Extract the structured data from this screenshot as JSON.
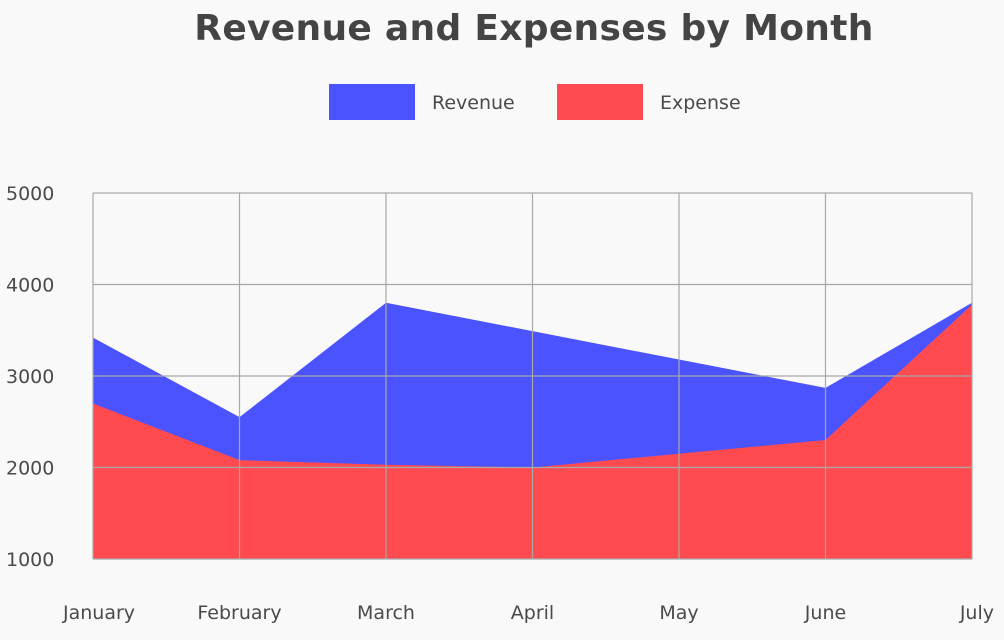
{
  "chart_data": {
    "type": "area",
    "title": "Revenue and Expenses by Month",
    "categories": [
      "January",
      "February",
      "March",
      "April",
      "May",
      "June",
      "July"
    ],
    "series": [
      {
        "name": "Revenue",
        "values": [
          3420,
          2550,
          3800,
          3490,
          3180,
          2870,
          3800
        ],
        "color": "#4b53ff"
      },
      {
        "name": "Expense",
        "values": [
          2700,
          2080,
          2030,
          2000,
          2150,
          2300,
          3780
        ],
        "color": "#ff4a50"
      }
    ],
    "ylim": [
      1000,
      5000
    ],
    "yticks": [
      1000,
      2000,
      3000,
      4000,
      5000
    ],
    "grid": true,
    "legend_position": "top-center"
  }
}
